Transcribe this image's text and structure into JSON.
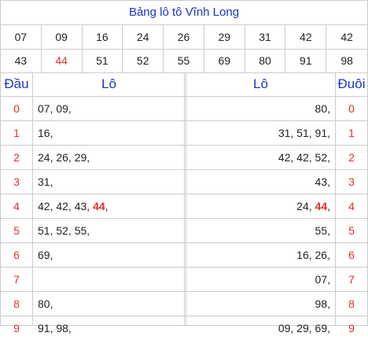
{
  "title": "Bảng lô tô Vĩnh Long",
  "numbers_row1": [
    "07",
    "09",
    "16",
    "24",
    "26",
    "29",
    "31",
    "42",
    "42"
  ],
  "numbers_row2": [
    "43",
    "44",
    "51",
    "52",
    "55",
    "69",
    "80",
    "91",
    "98"
  ],
  "highlight_color": "#e03030",
  "header": {
    "dau": "Đầu",
    "lo_left": "Lô",
    "lo_right": "Lô",
    "duoi": "Đuôi"
  },
  "rows": [
    {
      "dau": "0",
      "lo_left": "07, 09,",
      "lo_right": "80,",
      "duoi": "0"
    },
    {
      "dau": "1",
      "lo_left": "16,",
      "lo_right": "31, 51, 91,",
      "duoi": "1"
    },
    {
      "dau": "2",
      "lo_left": "24, 26, 29,",
      "lo_right": "42, 42, 52,",
      "duoi": "2"
    },
    {
      "dau": "3",
      "lo_left": "31,",
      "lo_right": "43,",
      "duoi": "3"
    },
    {
      "dau": "4",
      "lo_left_pre": "42, 42, 43, ",
      "lo_left_hl": "44",
      "lo_left_post": ",",
      "lo_right_pre": "24, ",
      "lo_right_hl": "44",
      "lo_right_post": ",",
      "duoi": "4"
    },
    {
      "dau": "5",
      "lo_left": "51, 52, 55,",
      "lo_right": "55,",
      "duoi": "5"
    },
    {
      "dau": "6",
      "lo_left": "69,",
      "lo_right": "16, 26,",
      "duoi": "6"
    },
    {
      "dau": "7",
      "lo_left": "",
      "lo_right": "07,",
      "duoi": "7"
    },
    {
      "dau": "8",
      "lo_left": "80,",
      "lo_right": "98,",
      "duoi": "8"
    },
    {
      "dau": "9",
      "lo_left": "91, 98,",
      "lo_right": "09, 29, 69,",
      "duoi": "9"
    }
  ]
}
